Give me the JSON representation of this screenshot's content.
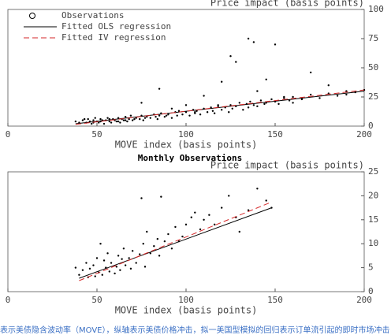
{
  "chart_data": [
    {
      "type": "scatter",
      "ylabel": "Price impact (basis points)",
      "xlabel": "MOVE index (basis points)",
      "xlim": [
        0,
        200
      ],
      "xticks": [
        0,
        50,
        100,
        150,
        200
      ],
      "ylim": [
        0,
        100
      ],
      "yticks": [
        0,
        25,
        50,
        75,
        100
      ],
      "yaxis_side": "right",
      "legend": "upper left",
      "series": [
        {
          "name": "Observations",
          "color": "#000000",
          "mode": "markers",
          "x": [
            38,
            40,
            42,
            44,
            45,
            46,
            47,
            48,
            49,
            50,
            51,
            52,
            53,
            54,
            55,
            56,
            57,
            58,
            59,
            60,
            61,
            62,
            63,
            64,
            65,
            66,
            67,
            68,
            69,
            70,
            72,
            74,
            75,
            76,
            78,
            80,
            82,
            84,
            85,
            86,
            88,
            90,
            92,
            94,
            95,
            96,
            98,
            100,
            102,
            104,
            105,
            106,
            108,
            110,
            112,
            114,
            115,
            116,
            118,
            120,
            122,
            124,
            125,
            126,
            128,
            130,
            132,
            134,
            135,
            136,
            138,
            140,
            142,
            144,
            145,
            148,
            150,
            152,
            155,
            158,
            160,
            165,
            170,
            175,
            180,
            185,
            190,
            195,
            200,
            43,
            48,
            52,
            57,
            62,
            66,
            71,
            77,
            83,
            89,
            75,
            85,
            110,
            118,
            120,
            125,
            128,
            135,
            138,
            145,
            150,
            155,
            160,
            170,
            180,
            190,
            92,
            100,
            105,
            140
          ],
          "values": [
            4,
            3,
            5,
            3,
            6,
            4,
            2,
            5,
            7,
            4,
            3,
            6,
            5,
            2,
            5,
            7,
            4,
            3,
            6,
            5,
            4,
            7,
            3,
            6,
            5,
            8,
            4,
            6,
            9,
            5,
            7,
            6,
            9,
            5,
            8,
            7,
            10,
            6,
            9,
            11,
            8,
            10,
            7,
            12,
            9,
            13,
            10,
            12,
            9,
            14,
            11,
            13,
            10,
            15,
            12,
            16,
            13,
            11,
            17,
            14,
            16,
            12,
            18,
            15,
            17,
            20,
            14,
            19,
            16,
            21,
            18,
            17,
            22,
            19,
            20,
            23,
            21,
            19,
            24,
            22,
            25,
            23,
            27,
            24,
            28,
            26,
            30,
            29,
            31,
            6,
            3,
            4,
            6,
            4,
            5,
            6,
            7,
            8,
            9,
            20,
            32,
            26,
            18,
            38,
            60,
            55,
            75,
            72,
            40,
            70,
            25,
            20,
            46,
            35,
            27,
            15,
            18,
            12,
            30
          ]
        },
        {
          "name": "Fitted OLS regression",
          "color": "#000000",
          "mode": "line",
          "dash": false,
          "x": [
            38,
            200
          ],
          "values": [
            2,
            30
          ]
        },
        {
          "name": "Fitted IV regression",
          "color": "#d62728",
          "mode": "line",
          "dash": true,
          "x": [
            38,
            200
          ],
          "values": [
            1.5,
            31
          ]
        }
      ]
    },
    {
      "type": "scatter",
      "title": "Monthly Observations",
      "ylabel": "Price impact (basis points)",
      "xlabel": "MOVE index (basis points)",
      "xlim": [
        0,
        200
      ],
      "xticks": [
        0,
        50,
        100,
        150,
        200
      ],
      "ylim": [
        0,
        25
      ],
      "yticks": [
        0,
        5,
        10,
        15,
        20,
        25
      ],
      "yaxis_side": "right",
      "series": [
        {
          "color": "#000000",
          "mode": "markers",
          "x": [
            38,
            40,
            42,
            44,
            45,
            46,
            48,
            49,
            50,
            51,
            52,
            53,
            54,
            55,
            56,
            57,
            58,
            60,
            61,
            62,
            63,
            64,
            65,
            66,
            68,
            69,
            70,
            72,
            74,
            75,
            76,
            77,
            78,
            80,
            82,
            84,
            85,
            86,
            88,
            90,
            92,
            94,
            96,
            98,
            100,
            103,
            105,
            108,
            110,
            113,
            116,
            120,
            124,
            128,
            130,
            135,
            140,
            145,
            148
          ],
          "values": [
            5,
            3.5,
            4.5,
            6,
            3,
            4.8,
            5.5,
            3.2,
            7,
            4,
            10,
            3.5,
            6.5,
            5,
            8,
            4.2,
            6,
            3.8,
            5.2,
            7.5,
            4.5,
            6.8,
            9,
            5.5,
            7,
            4.8,
            8.5,
            6,
            7.8,
            19.5,
            10,
            5.2,
            12.5,
            8,
            9.5,
            11,
            7.5,
            19.8,
            10.5,
            12,
            9,
            13.5,
            10.5,
            11.5,
            14,
            15.5,
            16.5,
            13,
            15,
            16,
            14,
            17.5,
            20,
            15.5,
            12.5,
            17,
            21.5,
            19,
            17.5
          ]
        },
        {
          "color": "#000000",
          "mode": "line",
          "dash": false,
          "x": [
            40,
            148
          ],
          "values": [
            2.8,
            17.5
          ]
        },
        {
          "color": "#d62728",
          "mode": "line",
          "dash": true,
          "x": [
            40,
            148
          ],
          "values": [
            2.3,
            18.7
          ]
        }
      ]
    }
  ],
  "caption": "表示美债隐含波动率（MOVE），纵轴表示美债价格冲击，拟一美国型模拟的回归表示订单流引起的即时市场冲击"
}
